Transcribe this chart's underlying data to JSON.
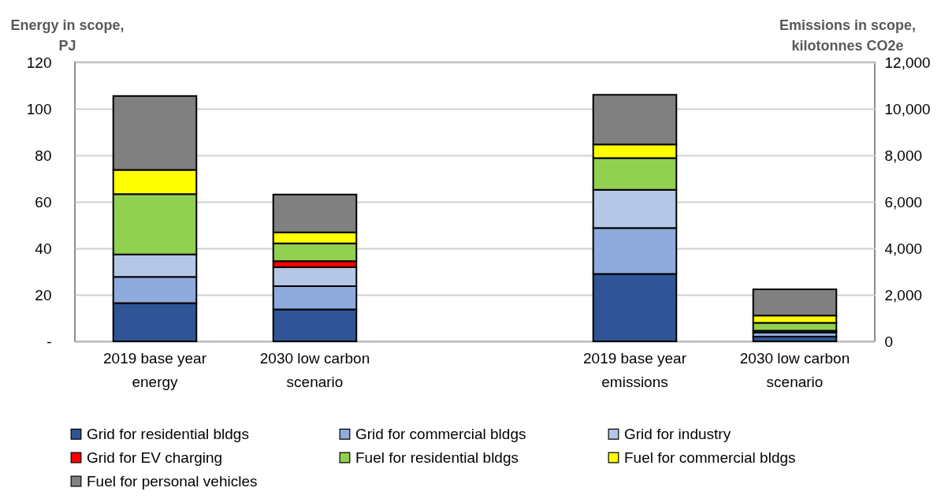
{
  "chart_data": {
    "type": "bar",
    "stacked": true,
    "categories": [
      "2019 base year energy",
      "2030 low carbon scenario",
      null,
      "2019 base year emissions",
      "2030 low carbon scenario"
    ],
    "ylabel": "Energy in scope, PJ",
    "y2label": "Emissions in scope, kilotonnes CO2e",
    "ylim": [
      0,
      120
    ],
    "yticks": [
      {
        "value": 0,
        "label": "-"
      },
      20,
      40,
      60,
      80,
      100,
      120
    ],
    "y2lim": [
      0,
      12000
    ],
    "y2ticks": [
      0,
      {
        "value": 2000,
        "label": "2,000"
      },
      {
        "value": 4000,
        "label": "4,000"
      },
      {
        "value": 6000,
        "label": "6,000"
      },
      {
        "value": 8000,
        "label": "8,000"
      },
      {
        "value": 10000,
        "label": "10,000"
      },
      {
        "value": 12000,
        "label": "12,000"
      }
    ],
    "grid": "y",
    "legend": "bottom",
    "series": [
      {
        "name": "Grid for residential bldgs",
        "color": "#2f5597",
        "values": [
          16.4,
          13.7,
          null,
          null,
          null
        ]
      },
      {
        "name": "Grid for commercial bldgs",
        "color": "#8faadc",
        "values": [
          11.3,
          10.0,
          null,
          null,
          null
        ]
      },
      {
        "name": "Grid for industry",
        "color": "#b4c7e7",
        "values": [
          9.7,
          8.2,
          null,
          null,
          null
        ]
      },
      {
        "name": "Grid for EV charging",
        "color": "#ff0000",
        "values": [
          null,
          2.6,
          null,
          null,
          null
        ]
      },
      {
        "name": "Fuel for residential bldgs",
        "color": "#92d050",
        "values": [
          25.9,
          7.6,
          null,
          null,
          null
        ]
      },
      {
        "name": "Fuel for commercial bldgs",
        "color": "#ffff00",
        "values": [
          10.4,
          4.8,
          null,
          null,
          null
        ]
      },
      {
        "name": "Fuel for personal vehicles",
        "color": "#808080",
        "values": [
          31.8,
          16.2,
          null,
          null,
          null
        ]
      },
      {
        "color": "#2f5597",
        "axis": "y2",
        "values": [
          null,
          null,
          null,
          2900,
          200
        ]
      },
      {
        "color": "#8faadc",
        "axis": "y2",
        "values": [
          null,
          null,
          null,
          1970,
          180
        ]
      },
      {
        "color": "#b4c7e7",
        "axis": "y2",
        "values": [
          null,
          null,
          null,
          1650,
          80
        ]
      },
      {
        "color": "#ff0000",
        "axis": "y2",
        "values": [
          null,
          null,
          null,
          null,
          null
        ]
      },
      {
        "color": "#92d050",
        "axis": "y2",
        "values": [
          null,
          null,
          null,
          1360,
          340
        ]
      },
      {
        "color": "#ffff00",
        "axis": "y2",
        "values": [
          null,
          null,
          null,
          590,
          310
        ]
      },
      {
        "color": "#808080",
        "axis": "y2",
        "values": [
          null,
          null,
          null,
          2130,
          1130
        ]
      }
    ]
  }
}
